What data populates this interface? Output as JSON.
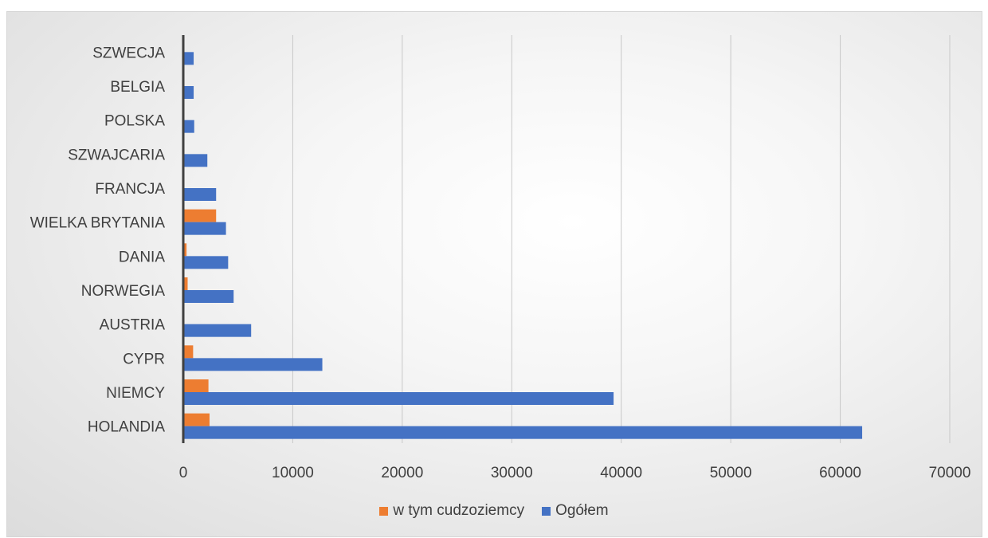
{
  "chart_data": {
    "type": "bar",
    "orientation": "horizontal",
    "categories": [
      "HOLANDIA",
      "NIEMCY",
      "CYPR",
      "AUSTRIA",
      "NORWEGIA",
      "DANIA",
      "WIELKA BRYTANIA",
      "FRANCJA",
      "SZWAJCARIA",
      "POLSKA",
      "BELGIA",
      "SZWECJA"
    ],
    "series": [
      {
        "name": "w tym cudzoziemcy",
        "color": "#ED7D31",
        "values": [
          2400,
          2300,
          900,
          0,
          400,
          300,
          3000,
          0,
          0,
          0,
          0,
          0
        ]
      },
      {
        "name": "Ogółem",
        "color": "#4472C4",
        "values": [
          62000,
          39300,
          12700,
          6200,
          4600,
          4100,
          3900,
          3000,
          2200,
          1000,
          950,
          950
        ]
      }
    ],
    "xlim": [
      0,
      70000
    ],
    "xticks": [
      "0",
      "10000",
      "20000",
      "30000",
      "40000",
      "50000",
      "60000",
      "70000"
    ],
    "grid": true,
    "legend_position": "bottom"
  }
}
